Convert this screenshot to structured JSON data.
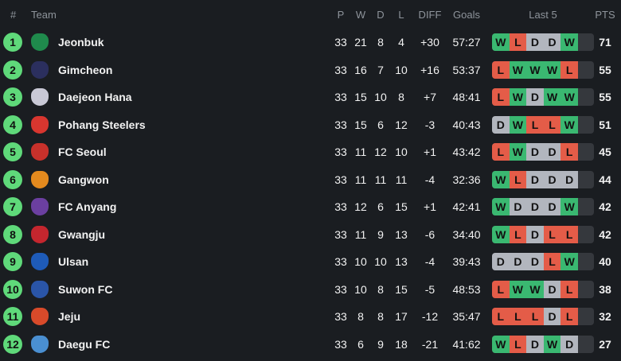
{
  "header": {
    "rank": "#",
    "team": "Team",
    "p": "P",
    "w": "W",
    "d": "D",
    "l": "L",
    "diff": "DIFF",
    "goals": "Goals",
    "last5": "Last 5",
    "pts": "PTS"
  },
  "colors": {
    "win": "#3ab871",
    "loss": "#e45c48",
    "draw": "#b2b6be",
    "rank_badge": "#5fd97a"
  },
  "rows": [
    {
      "rank": "1",
      "team": "Jeonbuk",
      "badge": "#1f8a4c",
      "p": "33",
      "w": "21",
      "d": "8",
      "l": "4",
      "diff": "+30",
      "goals": "57:27",
      "form": [
        "W",
        "L",
        "D",
        "D",
        "W"
      ],
      "pts": "71"
    },
    {
      "rank": "2",
      "team": "Gimcheon",
      "badge": "#2b2f5e",
      "p": "33",
      "w": "16",
      "d": "7",
      "l": "10",
      "diff": "+16",
      "goals": "53:37",
      "form": [
        "L",
        "W",
        "W",
        "W",
        "L"
      ],
      "pts": "55"
    },
    {
      "rank": "3",
      "team": "Daejeon Hana",
      "badge": "#c9c9d6",
      "p": "33",
      "w": "15",
      "d": "10",
      "l": "8",
      "diff": "+7",
      "goals": "48:41",
      "form": [
        "L",
        "W",
        "D",
        "W",
        "W"
      ],
      "pts": "55"
    },
    {
      "rank": "4",
      "team": "Pohang Steelers",
      "badge": "#d8362f",
      "p": "33",
      "w": "15",
      "d": "6",
      "l": "12",
      "diff": "-3",
      "goals": "40:43",
      "form": [
        "D",
        "W",
        "L",
        "L",
        "W"
      ],
      "pts": "51"
    },
    {
      "rank": "5",
      "team": "FC Seoul",
      "badge": "#c8312b",
      "p": "33",
      "w": "11",
      "d": "12",
      "l": "10",
      "diff": "+1",
      "goals": "43:42",
      "form": [
        "L",
        "W",
        "D",
        "D",
        "L"
      ],
      "pts": "45"
    },
    {
      "rank": "6",
      "team": "Gangwon",
      "badge": "#e48a1e",
      "p": "33",
      "w": "11",
      "d": "11",
      "l": "11",
      "diff": "-4",
      "goals": "32:36",
      "form": [
        "W",
        "L",
        "D",
        "D",
        "D"
      ],
      "pts": "44"
    },
    {
      "rank": "7",
      "team": "FC Anyang",
      "badge": "#6b3fa0",
      "p": "33",
      "w": "12",
      "d": "6",
      "l": "15",
      "diff": "+1",
      "goals": "42:41",
      "form": [
        "W",
        "D",
        "D",
        "D",
        "W"
      ],
      "pts": "42"
    },
    {
      "rank": "8",
      "team": "Gwangju",
      "badge": "#c4262e",
      "p": "33",
      "w": "11",
      "d": "9",
      "l": "13",
      "diff": "-6",
      "goals": "34:40",
      "form": [
        "W",
        "L",
        "D",
        "L",
        "L"
      ],
      "pts": "42"
    },
    {
      "rank": "9",
      "team": "Ulsan",
      "badge": "#1e5bb8",
      "p": "33",
      "w": "10",
      "d": "10",
      "l": "13",
      "diff": "-4",
      "goals": "39:43",
      "form": [
        "D",
        "D",
        "D",
        "L",
        "W"
      ],
      "pts": "40"
    },
    {
      "rank": "10",
      "team": "Suwon FC",
      "badge": "#2a55a8",
      "p": "33",
      "w": "10",
      "d": "8",
      "l": "15",
      "diff": "-5",
      "goals": "48:53",
      "form": [
        "L",
        "W",
        "W",
        "D",
        "L"
      ],
      "pts": "38"
    },
    {
      "rank": "11",
      "team": "Jeju",
      "badge": "#d84a2a",
      "p": "33",
      "w": "8",
      "d": "8",
      "l": "17",
      "diff": "-12",
      "goals": "35:47",
      "form": [
        "L",
        "L",
        "L",
        "D",
        "L"
      ],
      "pts": "32"
    },
    {
      "rank": "12",
      "team": "Daegu FC",
      "badge": "#4a8fd1",
      "p": "33",
      "w": "6",
      "d": "9",
      "l": "18",
      "diff": "-21",
      "goals": "41:62",
      "form": [
        "W",
        "L",
        "D",
        "W",
        "D"
      ],
      "pts": "27"
    }
  ]
}
